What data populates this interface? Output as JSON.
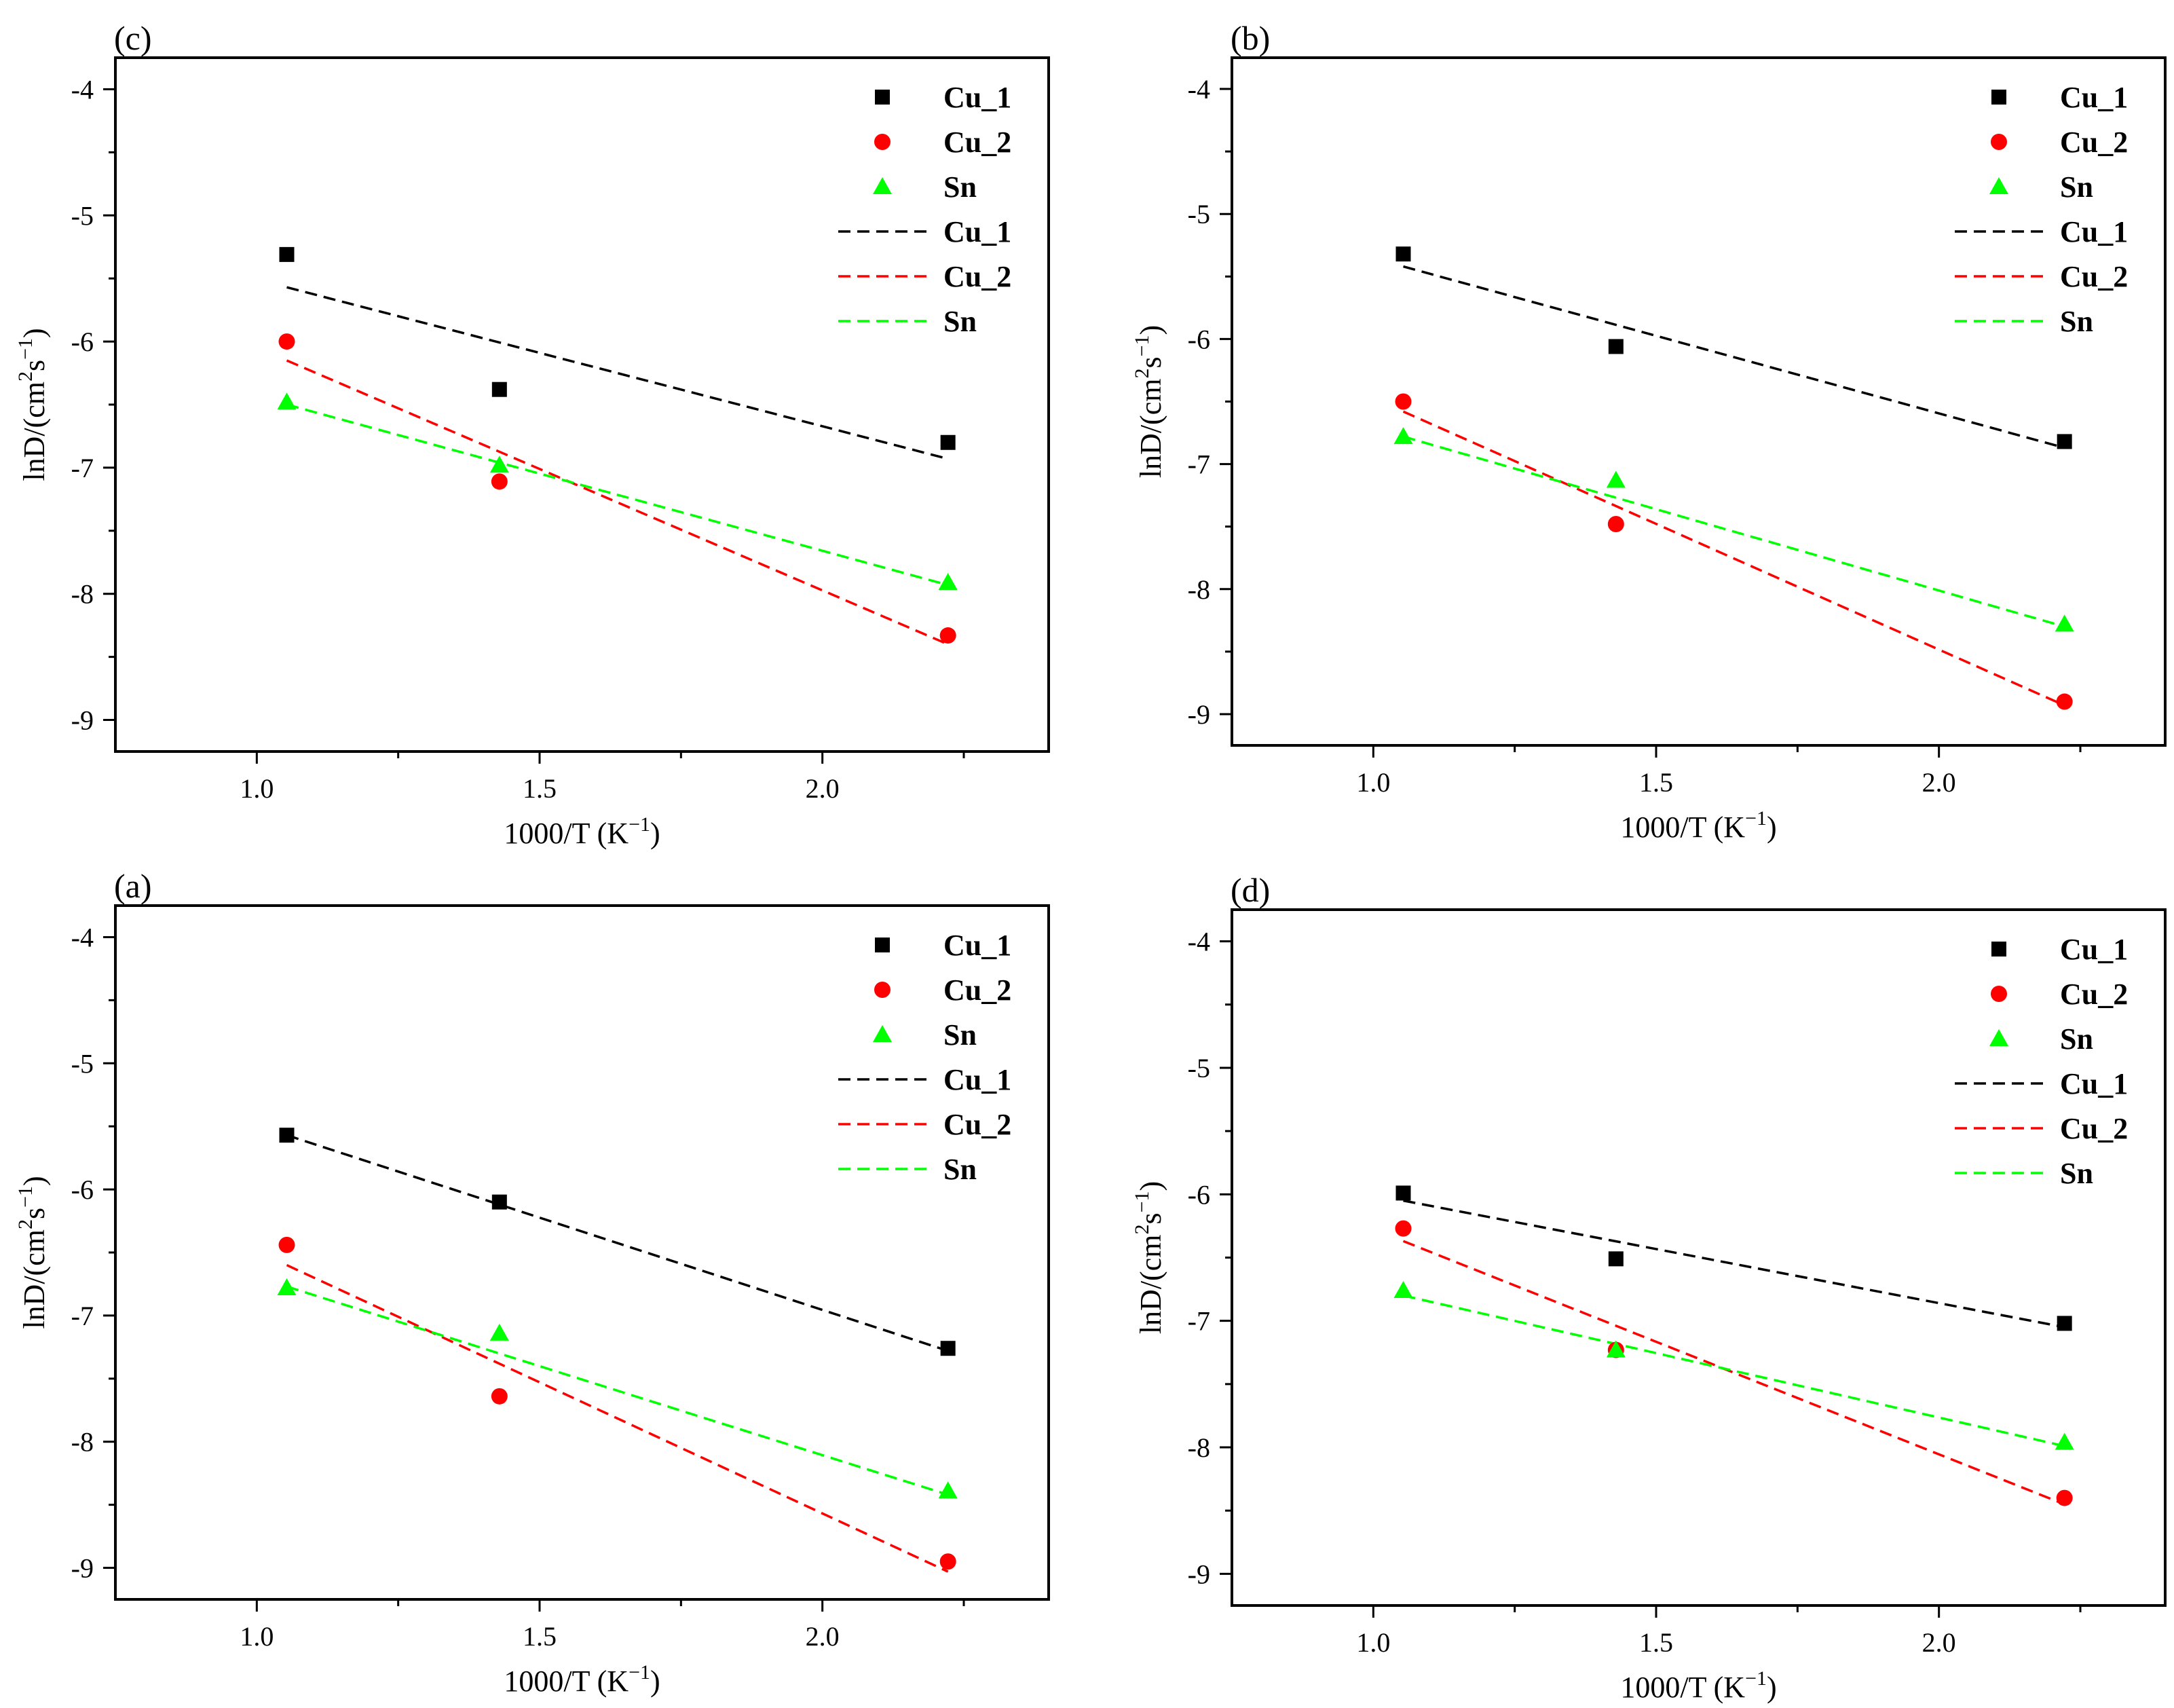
{
  "chart_data": [
    {
      "panel": "(c)",
      "type": "scatter",
      "xlabel": "1000/T (K",
      "xlabel_sup": "−1",
      "xlabel_close": ")",
      "ylabel": "lnD/(cm",
      "ylabel_sup1": "2",
      "ylabel_mid": "s",
      "ylabel_sup2": "−1",
      "ylabel_close": ")",
      "xlim": [
        0.75,
        2.4
      ],
      "ylim": [
        -9.25,
        -3.75
      ],
      "x_ticks": [
        1.0,
        1.5,
        2.0
      ],
      "x_tick_labels": [
        "1.0",
        "1.5",
        "2.0"
      ],
      "y_ticks": [
        -9,
        -8,
        -7,
        -6,
        -5,
        -4
      ],
      "y_tick_labels": [
        "-9",
        "-8",
        "-7",
        "-6",
        "-5",
        "-4"
      ],
      "series": [
        {
          "name": "Cu_1",
          "marker": "square",
          "color": "#000000",
          "x": [
            1.053,
            1.429,
            2.222
          ],
          "y": [
            -5.31,
            -6.38,
            -6.8
          ],
          "fit": [
            -5.57,
            -6.93
          ]
        },
        {
          "name": "Cu_2",
          "marker": "circle",
          "color": "#ff0000",
          "x": [
            1.053,
            1.429,
            2.222
          ],
          "y": [
            -6.0,
            -7.11,
            -8.33
          ],
          "fit": [
            -6.15,
            -8.4
          ]
        },
        {
          "name": "Sn",
          "marker": "triangle",
          "color": "#00ff00",
          "x": [
            1.053,
            1.429,
            2.222
          ],
          "y": [
            -6.48,
            -6.98,
            -7.91
          ],
          "fit": [
            -6.5,
            -7.93
          ]
        }
      ],
      "legend": [
        "Cu_1",
        "Cu_2",
        "Sn",
        "Cu_1",
        "Cu_2",
        "Sn"
      ]
    },
    {
      "panel": "(b)",
      "type": "scatter",
      "xlabel": "1000/T (K",
      "xlabel_sup": "−1",
      "xlabel_close": ")",
      "ylabel": "lnD/(cm",
      "ylabel_sup1": "2",
      "ylabel_mid": "s",
      "ylabel_sup2": "−1",
      "ylabel_close": ")",
      "xlim": [
        0.75,
        2.4
      ],
      "ylim": [
        -9.25,
        -3.75
      ],
      "x_ticks": [
        1.0,
        1.5,
        2.0
      ],
      "x_tick_labels": [
        "1.0",
        "1.5",
        "2.0"
      ],
      "y_ticks": [
        -9,
        -8,
        -7,
        -6,
        -5,
        -4
      ],
      "y_tick_labels": [
        "-9",
        "-8",
        "-7",
        "-6",
        "-5",
        "-4"
      ],
      "series": [
        {
          "name": "Cu_1",
          "marker": "square",
          "color": "#000000",
          "x": [
            1.053,
            1.429,
            2.222
          ],
          "y": [
            -5.32,
            -6.06,
            -6.82
          ],
          "fit": [
            -5.42,
            -6.87
          ]
        },
        {
          "name": "Cu_2",
          "marker": "circle",
          "color": "#ff0000",
          "x": [
            1.053,
            1.429,
            2.222
          ],
          "y": [
            -6.5,
            -7.48,
            -8.9
          ],
          "fit": [
            -6.58,
            -8.93
          ]
        },
        {
          "name": "Sn",
          "marker": "triangle",
          "color": "#00ff00",
          "x": [
            1.053,
            1.429,
            2.222
          ],
          "y": [
            -6.78,
            -7.13,
            -8.28
          ],
          "fit": [
            -6.78,
            -8.3
          ]
        }
      ],
      "legend": [
        "Cu_1",
        "Cu_2",
        "Sn",
        "Cu_1",
        "Cu_2",
        "Sn"
      ]
    },
    {
      "panel": "(a)",
      "type": "scatter",
      "xlabel": "1000/T (K",
      "xlabel_sup": "−1",
      "xlabel_close": ")",
      "ylabel": "lnD/(cm",
      "ylabel_sup1": "2",
      "ylabel_mid": "s",
      "ylabel_sup2": "−1",
      "ylabel_close": ")",
      "xlim": [
        0.75,
        2.4
      ],
      "ylim": [
        -9.25,
        -3.75
      ],
      "x_ticks": [
        1.0,
        1.5,
        2.0
      ],
      "x_tick_labels": [
        "1.0",
        "1.5",
        "2.0"
      ],
      "y_ticks": [
        -9,
        -8,
        -7,
        -6,
        -5,
        -4
      ],
      "y_tick_labels": [
        "-9",
        "-8",
        "-7",
        "-6",
        "-5",
        "-4"
      ],
      "series": [
        {
          "name": "Cu_1",
          "marker": "square",
          "color": "#000000",
          "x": [
            1.053,
            1.429,
            2.222
          ],
          "y": [
            -5.57,
            -6.1,
            -7.26
          ],
          "fit": [
            -5.57,
            -7.28
          ]
        },
        {
          "name": "Cu_2",
          "marker": "circle",
          "color": "#ff0000",
          "x": [
            1.053,
            1.429,
            2.222
          ],
          "y": [
            -6.44,
            -7.64,
            -8.95
          ],
          "fit": [
            -6.6,
            -9.03
          ]
        },
        {
          "name": "Sn",
          "marker": "triangle",
          "color": "#00ff00",
          "x": [
            1.053,
            1.429,
            2.222
          ],
          "y": [
            -6.78,
            -7.14,
            -8.39
          ],
          "fit": [
            -6.77,
            -8.42
          ]
        }
      ],
      "legend": [
        "Cu_1",
        "Cu_2",
        "Sn",
        "Cu_1",
        "Cu_2",
        "Sn"
      ]
    },
    {
      "panel": "(d)",
      "type": "scatter",
      "xlabel": "1000/T (K",
      "xlabel_sup": "−1",
      "xlabel_close": ")",
      "ylabel": "lnD/(cm",
      "ylabel_sup1": "2",
      "ylabel_mid": "s",
      "ylabel_sup2": "−1",
      "ylabel_close": ")",
      "xlim": [
        0.75,
        2.4
      ],
      "ylim": [
        -9.25,
        -3.75
      ],
      "x_ticks": [
        1.0,
        1.5,
        2.0
      ],
      "x_tick_labels": [
        "1.0",
        "1.5",
        "2.0"
      ],
      "y_ticks": [
        -9,
        -8,
        -7,
        -6,
        -5,
        -4
      ],
      "y_tick_labels": [
        "-9",
        "-8",
        "-7",
        "-6",
        "-5",
        "-4"
      ],
      "series": [
        {
          "name": "Cu_1",
          "marker": "square",
          "color": "#000000",
          "x": [
            1.053,
            1.429,
            2.222
          ],
          "y": [
            -5.99,
            -6.51,
            -7.02
          ],
          "fit": [
            -6.05,
            -7.05
          ]
        },
        {
          "name": "Cu_2",
          "marker": "circle",
          "color": "#ff0000",
          "x": [
            1.053,
            1.429,
            2.222
          ],
          "y": [
            -6.27,
            -7.23,
            -8.4
          ],
          "fit": [
            -6.37,
            -8.45
          ]
        },
        {
          "name": "Sn",
          "marker": "triangle",
          "color": "#00ff00",
          "x": [
            1.053,
            1.429,
            2.222
          ],
          "y": [
            -6.76,
            -7.23,
            -7.96
          ],
          "fit": [
            -6.8,
            -7.99
          ]
        }
      ],
      "legend": [
        "Cu_1",
        "Cu_2",
        "Sn",
        "Cu_1",
        "Cu_2",
        "Sn"
      ]
    }
  ]
}
